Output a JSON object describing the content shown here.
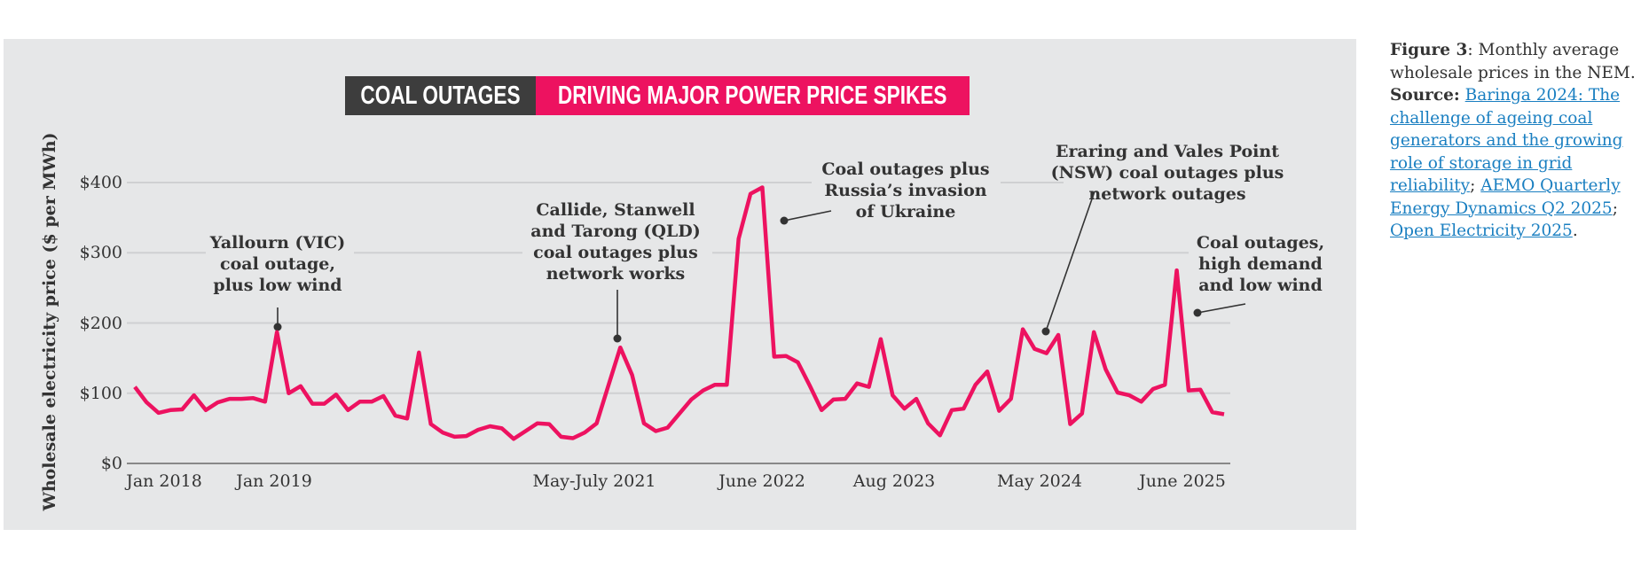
{
  "chart_data": {
    "type": "line",
    "title_part1": "COAL OUTAGES",
    "title_part2": "DRIVING MAJOR POWER PRICE SPIKES",
    "ylabel": "Wholesale electricity price ($ per MWh)",
    "xlabel": "",
    "ylim": [
      0,
      400
    ],
    "yticks": [
      "$0",
      "$100",
      "$200",
      "$300",
      "$400"
    ],
    "ytick_values": [
      0,
      100,
      200,
      300,
      400
    ],
    "grid": true,
    "x_start": "Jan 2018",
    "x_interval": "monthly",
    "xtick_labels": [
      "Jan 2018",
      "Jan 2019",
      "May-July 2021",
      "June 2022",
      "Aug 2023",
      "May 2024",
      "June 2025"
    ],
    "series": [
      {
        "name": "Monthly average wholesale price",
        "color": "#ed1260",
        "values": [
          109,
          87,
          72,
          76,
          77,
          97,
          76,
          87,
          92,
          92,
          93,
          88,
          187,
          100,
          110,
          85,
          85,
          98,
          76,
          88,
          88,
          96,
          68,
          64,
          158,
          56,
          44,
          38,
          39,
          48,
          53,
          50,
          35,
          46,
          57,
          56,
          38,
          36,
          44,
          57,
          111,
          165,
          126,
          57,
          46,
          51,
          71,
          91,
          104,
          112,
          112,
          320,
          384,
          393,
          152,
          153,
          144,
          111,
          76,
          91,
          92,
          114,
          109,
          177,
          97,
          78,
          92,
          57,
          40,
          76,
          78,
          112,
          131,
          75,
          92,
          191,
          163,
          157,
          183,
          56,
          71,
          187,
          134,
          101,
          97,
          88,
          106,
          112,
          275,
          104,
          105,
          73,
          70
        ]
      }
    ],
    "annotations": [
      {
        "lines": [
          "Yallourn (VIC)",
          "coal outage,",
          "plus low wind"
        ],
        "point_index": 12
      },
      {
        "lines": [
          "Callide, Stanwell",
          "and Tarong (QLD)",
          "coal outages plus",
          "network works"
        ],
        "point_index": 41
      },
      {
        "lines": [
          "Coal outages plus",
          "Russia’s invasion",
          "of Ukraine"
        ],
        "point_index": 53
      },
      {
        "lines": [
          "Eraring and Vales Point",
          "(NSW) coal outages plus",
          "network outages"
        ],
        "point_index": 76
      },
      {
        "lines": [
          "Coal outages,",
          "high demand",
          "and low wind"
        ],
        "point_index": 89
      }
    ]
  },
  "caption": {
    "figure_label": "Figure 3",
    "text": ": Monthly average wholesale prices in the NEM. ",
    "source_label": "Source:",
    "link1": "Baringa 2024: The challenge of ageing coal generators and the growing role of storage in grid reliability",
    "sep1": "; ",
    "link2": "AEMO Quarterly Energy Dynamics Q2 2025",
    "sep2": "; ",
    "link3": "Open Electricity 2025",
    "end": "."
  },
  "colors": {
    "accent": "#ed1260",
    "dark": "#3d3d3d",
    "panel": "#e6e7e8",
    "link": "#1a7fc1"
  }
}
